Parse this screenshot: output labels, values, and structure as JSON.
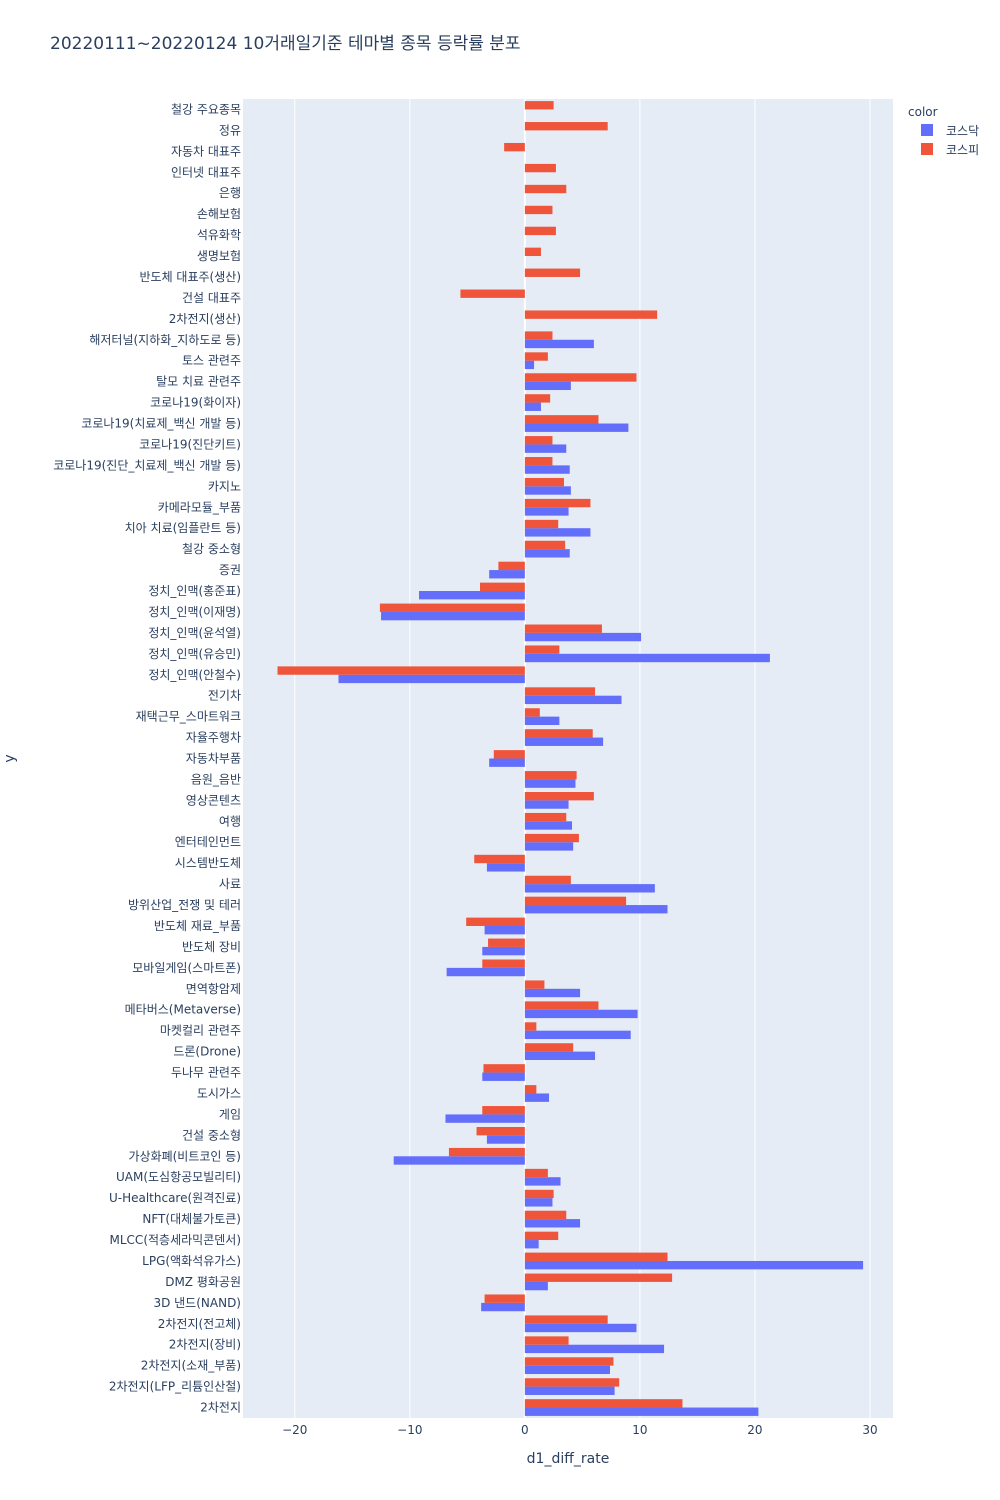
{
  "chart_data": {
    "type": "bar",
    "orientation": "horizontal",
    "barmode": "group",
    "title": "20220111~20220124 10거래일기준 테마별 종목 등락률 분포",
    "xlabel": "d1_diff_rate",
    "ylabel": "y",
    "xlim": [
      -24.5,
      32
    ],
    "xticks": [
      -20,
      -10,
      0,
      10,
      20,
      30
    ],
    "xtick_labels": [
      "−20",
      "−10",
      "0",
      "10",
      "20",
      "30"
    ],
    "grid": true,
    "legend": {
      "title": "color",
      "position": "top-right"
    },
    "categories": [
      "철강 주요종목",
      "정유",
      "자동차 대표주",
      "인터넷 대표주",
      "은행",
      "손해보험",
      "석유화학",
      "생명보험",
      "반도체 대표주(생산)",
      "건설 대표주",
      "2차전지(생산)",
      "해저터널(지하화_지하도로 등)",
      "토스 관련주",
      "탈모 치료 관련주",
      "코로나19(화이자)",
      "코로나19(치료제_백신 개발 등)",
      "코로나19(진단키트)",
      "코로나19(진단_치료제_백신 개발 등)",
      "카지노",
      "카메라모듈_부품",
      "치아 치료(임플란트 등)",
      "철강 중소형",
      "증권",
      "정치_인맥(홍준표)",
      "정치_인맥(이재명)",
      "정치_인맥(윤석열)",
      "정치_인맥(유승민)",
      "정치_인맥(안철수)",
      "전기차",
      "재택근무_스마트워크",
      "자율주행차",
      "자동차부품",
      "음원_음반",
      "영상콘텐츠",
      "여행",
      "엔터테인먼트",
      "시스템반도체",
      "사료",
      "방위산업_전쟁 및 테러",
      "반도체 재료_부품",
      "반도체 장비",
      "모바일게임(스마트폰)",
      "면역항암제",
      "메타버스(Metaverse)",
      "마켓컬리 관련주",
      "드론(Drone)",
      "두나무 관련주",
      "도시가스",
      "게임",
      "건설 중소형",
      "가상화폐(비트코인 등)",
      "UAM(도심항공모빌리티)",
      "U-Healthcare(원격진료)",
      "NFT(대체불가토큰)",
      "MLCC(적층세라믹콘덴서)",
      "LPG(액화석유가스)",
      "DMZ 평화공원",
      "3D 낸드(NAND)",
      "2차전지(전고체)",
      "2차전지(장비)",
      "2차전지(소재_부품)",
      "2차전지(LFP_리튬인산철)",
      "2차전지"
    ],
    "series": [
      {
        "name": "코스닥",
        "color": "#636efa",
        "values": [
          null,
          null,
          null,
          null,
          null,
          null,
          null,
          null,
          null,
          null,
          null,
          6.0,
          0.8,
          4.0,
          1.4,
          9.0,
          3.6,
          3.9,
          4.0,
          3.8,
          5.7,
          3.9,
          -3.1,
          -9.2,
          -12.5,
          10.1,
          21.3,
          -16.2,
          8.4,
          3.0,
          6.8,
          -3.1,
          4.4,
          3.8,
          4.1,
          4.2,
          -3.3,
          11.3,
          12.4,
          -3.5,
          -3.7,
          -6.8,
          4.8,
          9.8,
          9.2,
          6.1,
          -3.7,
          2.1,
          -6.9,
          -3.3,
          -11.4,
          3.1,
          2.4,
          4.8,
          1.2,
          29.4,
          2.0,
          -3.8,
          9.7,
          12.1,
          7.4,
          7.8,
          20.3
        ]
      },
      {
        "name": "코스피",
        "color": "#ef553b",
        "values": [
          2.5,
          7.2,
          -1.8,
          2.7,
          3.6,
          2.4,
          2.7,
          1.4,
          4.8,
          -5.6,
          11.5,
          2.4,
          2.0,
          9.7,
          2.2,
          6.4,
          2.4,
          2.4,
          3.4,
          5.7,
          2.9,
          3.5,
          -2.3,
          -3.9,
          -12.6,
          6.7,
          3.0,
          -21.5,
          6.1,
          1.3,
          5.9,
          -2.7,
          4.5,
          6.0,
          3.6,
          4.7,
          -4.4,
          4.0,
          8.8,
          -5.1,
          -3.2,
          -3.7,
          1.7,
          6.4,
          1.0,
          4.2,
          -3.6,
          1.0,
          -3.7,
          -4.2,
          -6.6,
          2.0,
          2.5,
          3.6,
          2.9,
          12.4,
          12.8,
          -3.5,
          7.2,
          3.8,
          7.7,
          8.2,
          13.7
        ]
      }
    ]
  }
}
